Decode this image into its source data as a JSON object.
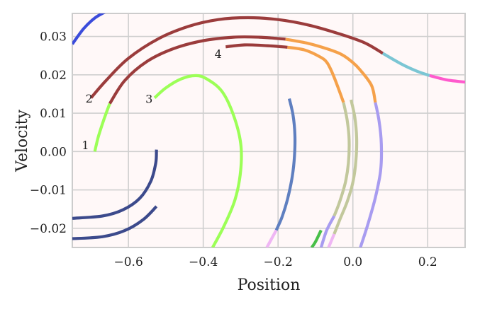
{
  "chart_data": {
    "type": "line",
    "title": "",
    "xlabel": "Position",
    "ylabel": "Velocity",
    "xlim": [
      -0.75,
      0.3
    ],
    "ylim": [
      -0.025,
      0.036
    ],
    "grid": true,
    "xticks": [
      -0.6,
      -0.4,
      -0.2,
      0.0,
      0.2
    ],
    "xtick_labels": [
      "−0.6",
      "−0.4",
      "−0.2",
      "0.0",
      "0.2"
    ],
    "yticks": [
      -0.02,
      -0.01,
      0.0,
      0.01,
      0.02,
      0.03
    ],
    "ytick_labels": [
      "−0.02",
      "−0.01",
      "0.00",
      "0.01",
      "0.02",
      "0.03"
    ],
    "annotations": [
      {
        "text": "1",
        "x": -0.715,
        "y": 0.0017
      },
      {
        "text": "2",
        "x": -0.705,
        "y": 0.0139
      },
      {
        "text": "3",
        "x": -0.545,
        "y": 0.0138
      },
      {
        "text": "4",
        "x": -0.36,
        "y": 0.0255
      }
    ],
    "series": [
      {
        "color": "#3b4cdb",
        "points": [
          [
            -0.75,
            0.028
          ],
          [
            -0.72,
            0.032
          ],
          [
            -0.69,
            0.0348
          ],
          [
            -0.66,
            0.0365
          ]
        ]
      },
      {
        "color": "#9cff57",
        "points": [
          [
            -0.69,
            0.0
          ],
          [
            -0.68,
            0.004
          ],
          [
            -0.665,
            0.0085
          ],
          [
            -0.65,
            0.0125
          ]
        ]
      },
      {
        "color": "#9b3c3c",
        "points": [
          [
            -0.65,
            0.0125
          ],
          [
            -0.61,
            0.0185
          ],
          [
            -0.55,
            0.0235
          ],
          [
            -0.48,
            0.0268
          ],
          [
            -0.4,
            0.0289
          ],
          [
            -0.32,
            0.0298
          ],
          [
            -0.25,
            0.0298
          ],
          [
            -0.18,
            0.0293
          ]
        ]
      },
      {
        "color": "#f5a14a",
        "points": [
          [
            -0.18,
            0.0293
          ],
          [
            -0.12,
            0.0282
          ],
          [
            -0.07,
            0.0268
          ],
          [
            -0.03,
            0.0253
          ],
          [
            0.0,
            0.0232
          ],
          [
            0.02,
            0.0212
          ],
          [
            0.05,
            0.0172
          ],
          [
            0.06,
            0.0128
          ]
        ]
      },
      {
        "color": "#a89cf0",
        "points": [
          [
            0.06,
            0.0128
          ],
          [
            0.07,
            0.008
          ],
          [
            0.076,
            0.002
          ],
          [
            0.074,
            -0.005
          ],
          [
            0.06,
            -0.012
          ],
          [
            0.04,
            -0.019
          ],
          [
            0.02,
            -0.025
          ]
        ]
      },
      {
        "color": "#9b3c3c",
        "points": [
          [
            -0.7,
            0.014
          ],
          [
            -0.66,
            0.0185
          ],
          [
            -0.6,
            0.0243
          ],
          [
            -0.52,
            0.0294
          ],
          [
            -0.44,
            0.0326
          ],
          [
            -0.36,
            0.0344
          ],
          [
            -0.28,
            0.0349
          ],
          [
            -0.2,
            0.0344
          ],
          [
            -0.12,
            0.033
          ],
          [
            -0.04,
            0.0308
          ],
          [
            0.03,
            0.0284
          ],
          [
            0.08,
            0.0256
          ]
        ]
      },
      {
        "color": "#7bc6d4",
        "points": [
          [
            0.08,
            0.0256
          ],
          [
            0.13,
            0.0228
          ],
          [
            0.17,
            0.021
          ],
          [
            0.205,
            0.0198
          ]
        ]
      },
      {
        "color": "#ff5acd",
        "points": [
          [
            0.205,
            0.0198
          ],
          [
            0.25,
            0.0187
          ],
          [
            0.3,
            0.0181
          ]
        ]
      },
      {
        "color": "#9cff57",
        "points": [
          [
            -0.53,
            0.014
          ],
          [
            -0.5,
            0.0166
          ],
          [
            -0.46,
            0.0189
          ],
          [
            -0.42,
            0.0198
          ],
          [
            -0.39,
            0.0189
          ],
          [
            -0.35,
            0.0157
          ],
          [
            -0.32,
            0.0097
          ],
          [
            -0.3,
            0.0022
          ],
          [
            -0.3,
            -0.005
          ],
          [
            -0.315,
            -0.0125
          ],
          [
            -0.345,
            -0.0195
          ],
          [
            -0.375,
            -0.025
          ]
        ]
      },
      {
        "color": "#9b3c3c",
        "points": [
          [
            -0.34,
            0.0273
          ],
          [
            -0.29,
            0.0278
          ],
          [
            -0.23,
            0.0276
          ],
          [
            -0.175,
            0.0272
          ]
        ]
      },
      {
        "color": "#f5a14a",
        "points": [
          [
            -0.175,
            0.0272
          ],
          [
            -0.13,
            0.0265
          ],
          [
            -0.09,
            0.0248
          ],
          [
            -0.07,
            0.0233
          ],
          [
            -0.055,
            0.0205
          ],
          [
            -0.04,
            0.0168
          ],
          [
            -0.025,
            0.0128
          ]
        ]
      },
      {
        "color": "#c2c89c",
        "points": [
          [
            -0.025,
            0.0128
          ],
          [
            -0.015,
            0.008
          ],
          [
            -0.01,
            0.003
          ],
          [
            -0.012,
            -0.003
          ],
          [
            -0.02,
            -0.008
          ],
          [
            -0.035,
            -0.013
          ],
          [
            -0.05,
            -0.0168
          ]
        ]
      },
      {
        "color": "#a89cf0",
        "points": [
          [
            -0.05,
            -0.0168
          ],
          [
            -0.07,
            -0.0205
          ],
          [
            -0.085,
            -0.025
          ]
        ]
      },
      {
        "color": "#c2c89c",
        "points": [
          [
            -0.005,
            0.0135
          ],
          [
            0.005,
            0.009
          ],
          [
            0.01,
            0.0035
          ],
          [
            0.008,
            -0.0025
          ],
          [
            0.0,
            -0.008
          ],
          [
            -0.015,
            -0.013
          ],
          [
            -0.035,
            -0.0178
          ],
          [
            -0.05,
            -0.0215
          ]
        ]
      },
      {
        "color": "#efb6f4",
        "points": [
          [
            -0.05,
            -0.0215
          ],
          [
            -0.065,
            -0.025
          ]
        ]
      },
      {
        "color": "#5f7fc0",
        "points": [
          [
            -0.17,
            0.0138
          ],
          [
            -0.16,
            0.0095
          ],
          [
            -0.155,
            0.0045
          ],
          [
            -0.156,
            -0.001
          ],
          [
            -0.162,
            -0.0065
          ],
          [
            -0.175,
            -0.0125
          ],
          [
            -0.19,
            -0.0172
          ],
          [
            -0.205,
            -0.0205
          ]
        ]
      },
      {
        "color": "#efb6f4",
        "points": [
          [
            -0.205,
            -0.0205
          ],
          [
            -0.23,
            -0.025
          ]
        ]
      },
      {
        "color": "#48bf48",
        "points": [
          [
            -0.085,
            -0.0205
          ],
          [
            -0.1,
            -0.0235
          ],
          [
            -0.11,
            -0.025
          ]
        ]
      },
      {
        "color": "#3c4a8c",
        "points": [
          [
            -0.525,
            0.0005
          ],
          [
            -0.527,
            -0.003
          ],
          [
            -0.54,
            -0.0077
          ],
          [
            -0.57,
            -0.0122
          ],
          [
            -0.615,
            -0.0152
          ],
          [
            -0.67,
            -0.0168
          ],
          [
            -0.75,
            -0.0174
          ]
        ]
      },
      {
        "color": "#3c4a8c",
        "points": [
          [
            -0.525,
            -0.0143
          ],
          [
            -0.56,
            -0.0177
          ],
          [
            -0.61,
            -0.0206
          ],
          [
            -0.67,
            -0.0222
          ],
          [
            -0.75,
            -0.0227
          ]
        ]
      }
    ]
  }
}
